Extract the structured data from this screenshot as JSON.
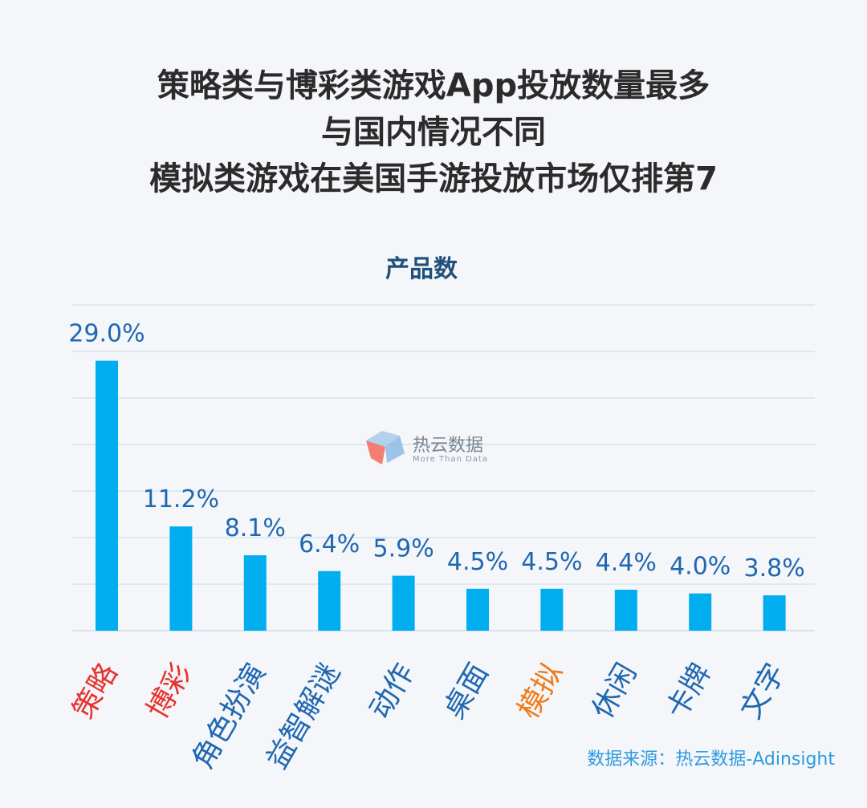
{
  "headline": {
    "line1": "策略类与博彩类游戏App投放数量最多",
    "line2": "与国内情况不同",
    "line3": "模拟类游戏在美国手游投放市场仅排第7"
  },
  "watermark": {
    "name": "热云数据",
    "tagline": "More Than Data"
  },
  "source": "数据来源：热云数据-Adinsight",
  "colors": {
    "bar": "#00aeef",
    "value_label": "#1f67b1",
    "category_default": "#1f67b1",
    "category_red": "#e8312f",
    "category_orange": "#f07a1a",
    "grid": "#d8e3ee"
  },
  "chart_data": {
    "type": "bar",
    "title": "产品数",
    "categories": [
      "策略",
      "博彩",
      "角色扮演",
      "益智解谜",
      "动作",
      "桌面",
      "模拟",
      "休闲",
      "卡牌",
      "文字"
    ],
    "values": [
      29.0,
      11.2,
      8.1,
      6.4,
      5.9,
      4.5,
      4.5,
      4.4,
      4.0,
      3.8
    ],
    "value_labels": [
      "29.0%",
      "11.2%",
      "8.1%",
      "6.4%",
      "5.9%",
      "4.5%",
      "4.5%",
      "4.4%",
      "4.0%",
      "3.8%"
    ],
    "category_highlight": [
      "red",
      "red",
      "default",
      "default",
      "default",
      "default",
      "orange",
      "default",
      "default",
      "default"
    ],
    "ylim": [
      0,
      35
    ],
    "grid": true
  }
}
